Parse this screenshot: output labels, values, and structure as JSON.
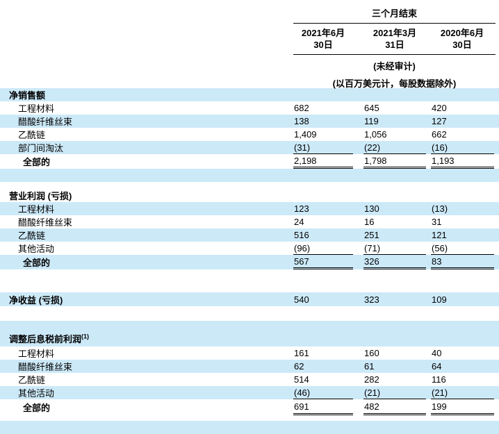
{
  "header": {
    "period_title": "三个月结束",
    "date_columns": [
      {
        "line1": "2021年6月",
        "line2": "30日"
      },
      {
        "line1": "2021年3月",
        "line2": "31日"
      },
      {
        "line1": "2020年6月",
        "line2": "30日"
      }
    ],
    "notes": {
      "unaudited": "(未经审计)",
      "units": "(以百万美元计，每股数据除外)"
    }
  },
  "sections": [
    {
      "title": "净销售额",
      "rows": [
        {
          "label": "工程材料",
          "values": [
            "682",
            "645",
            "420"
          ]
        },
        {
          "label": "醋酸纤维丝束",
          "values": [
            "138",
            "119",
            "127"
          ]
        },
        {
          "label": "乙酰链",
          "values": [
            "1,409",
            "1,056",
            "662"
          ]
        },
        {
          "label": "部门间淘汰",
          "values": [
            "(31)",
            "(22)",
            "(16)"
          ]
        }
      ],
      "total": {
        "label": "全部的",
        "values": [
          "2,198",
          "1,798",
          "1,193"
        ]
      }
    },
    {
      "title": "营业利润 (亏损)",
      "rows": [
        {
          "label": "工程材料",
          "values": [
            "123",
            "130",
            "(13)"
          ]
        },
        {
          "label": "醋酸纤维丝束",
          "values": [
            "24",
            "16",
            "31"
          ]
        },
        {
          "label": "乙酰链",
          "values": [
            "516",
            "251",
            "121"
          ]
        },
        {
          "label": "其他活动",
          "values": [
            "(96)",
            "(71)",
            "(56)"
          ]
        }
      ],
      "total": {
        "label": "全部的",
        "values": [
          "567",
          "326",
          "83"
        ]
      }
    },
    {
      "title": "净收益 (亏损)",
      "values": [
        "540",
        "323",
        "109"
      ]
    },
    {
      "title": "调整后息税前利润",
      "superscript": "(1)",
      "rows": [
        {
          "label": "工程材料",
          "values": [
            "161",
            "160",
            "40"
          ]
        },
        {
          "label": "醋酸纤维丝束",
          "values": [
            "62",
            "61",
            "64"
          ]
        },
        {
          "label": "乙酰链",
          "values": [
            "514",
            "282",
            "116"
          ]
        },
        {
          "label": "其他活动",
          "values": [
            "(46)",
            "(21)",
            "(21)"
          ]
        }
      ],
      "total": {
        "label": "全部的",
        "values": [
          "691",
          "482",
          "199"
        ]
      }
    }
  ],
  "colors": {
    "row_stripe": "#cce9f8",
    "text": "#000000",
    "rule": "#000000"
  }
}
